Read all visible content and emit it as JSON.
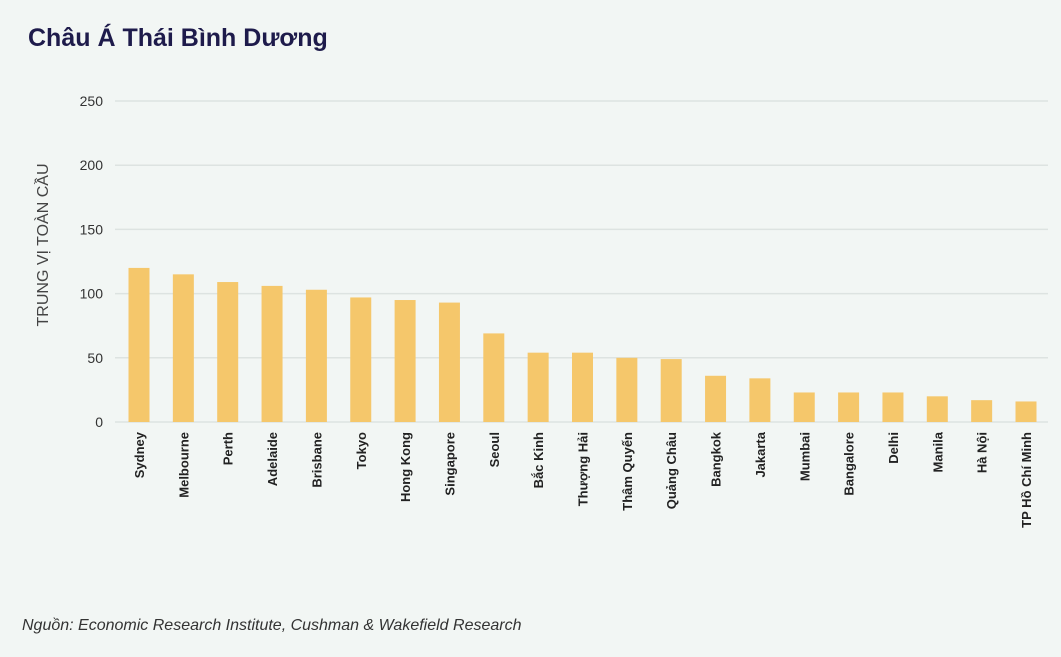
{
  "chart_data": {
    "type": "bar",
    "title": "Châu Á Thái Bình Dương",
    "ylabel": "TRUNG VỊ TOÀN CẦU",
    "xlabel": "",
    "ylim": [
      0,
      250
    ],
    "yticks": [
      0,
      50,
      100,
      150,
      200,
      250
    ],
    "grid": true,
    "bar_color": "#f5c76b",
    "grid_color": "#dde3e1",
    "categories": [
      "Sydney",
      "Melbourne",
      "Perth",
      "Adelaide",
      "Brisbane",
      "Tokyo",
      "Hong Kong",
      "Singapore",
      "Seoul",
      "Bắc Kinh",
      "Thượng Hải",
      "Thâm Quyến",
      "Quảng Châu",
      "Bangkok",
      "Jakarta",
      "Mumbai",
      "Bangalore",
      "Delhi",
      "Manila",
      "Hà Nội",
      "TP Hồ Chí Minh"
    ],
    "values": [
      120,
      115,
      109,
      106,
      103,
      97,
      95,
      93,
      69,
      54,
      54,
      50,
      49,
      36,
      34,
      23,
      23,
      23,
      20,
      17,
      16
    ]
  },
  "source": "Nguồn: Economic Research Institute, Cushman & Wakefield Research"
}
